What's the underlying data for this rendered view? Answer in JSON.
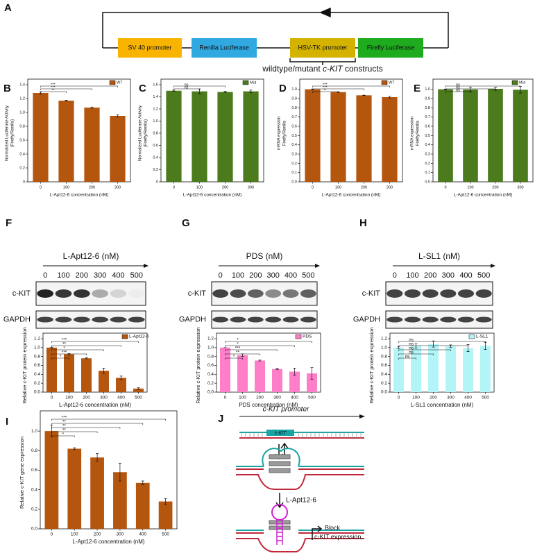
{
  "construct": {
    "panel": "A",
    "boxes": [
      "SV 40 promoter",
      "Renilla Luciferase",
      "HSV-TK promoter",
      "Firefly Luciferase"
    ],
    "caption": [
      "wildtype/mutant ",
      "c-KIT",
      " constructs"
    ]
  },
  "blots": [
    {
      "title": "L-Apt12-6 (nM)",
      "lanes": [
        "0",
        "100",
        "200",
        "300",
        "400",
        "500"
      ],
      "rows": [
        "c-KIT",
        "GAPDH"
      ]
    },
    {
      "title": "PDS (nM)",
      "lanes": [
        "0",
        "100",
        "200",
        "300",
        "400",
        "500"
      ],
      "rows": [
        "c-KIT",
        "GAPDH"
      ]
    },
    {
      "title": "L-SL1 (nM)",
      "lanes": [
        "0",
        "100",
        "200",
        "300",
        "400",
        "500"
      ],
      "rows": [
        "c-KIT",
        "GAPDH"
      ]
    }
  ],
  "mechanism": {
    "panel": "J",
    "promoter": "c-KIT promoter",
    "box": "c-KIT",
    "drug": "L-Apt12-6",
    "block": [
      "Block",
      "c-KIT expression"
    ]
  },
  "chart_data": [
    {
      "type": "bar",
      "panel": "B",
      "categories": [
        "0",
        "100",
        "200",
        "300"
      ],
      "series": [
        {
          "name": "WT",
          "color": "#b5560f",
          "values": [
            1.28,
            1.17,
            1.07,
            0.95
          ],
          "errors": [
            0.015,
            0.005,
            0.008,
            0.015
          ]
        }
      ],
      "xlabel": "L-Apt12-6 concentration (nM)",
      "ylabel": [
        "Normalized Luciferase Activity",
        "(Firefly/Renilla)"
      ],
      "ylim": [
        0,
        1.4
      ],
      "yticks": [
        0,
        0.2,
        0.4,
        0.6,
        0.8,
        {
          "value": 1,
          "label": "1.0"
        },
        1.2,
        1.4
      ],
      "significance": [
        "**",
        "***",
        "***"
      ]
    },
    {
      "type": "bar",
      "panel": "C",
      "categories": [
        "0",
        "100",
        "200",
        "300"
      ],
      "series": [
        {
          "name": "Mut",
          "color": "#4b7b1c",
          "values": [
            1.5,
            1.49,
            1.48,
            1.49
          ],
          "errors": [
            0.01,
            0.04,
            0.01,
            0.02
          ]
        }
      ],
      "xlabel": "L-Apt12-6 concentration (nM)",
      "ylabel": [
        "Normalized Luciferase Activity",
        "(Firefly/Renilla)"
      ],
      "ylim": [
        0,
        1.6
      ],
      "yticks": [
        0,
        0.2,
        0.4,
        0.6,
        0.8,
        {
          "value": 1,
          "label": "1.0"
        },
        1.2,
        1.4,
        1.6
      ],
      "significance": [
        "ns",
        "ns"
      ]
    },
    {
      "type": "bar",
      "panel": "D",
      "categories": [
        "0",
        "100",
        "200",
        "300"
      ],
      "series": [
        {
          "name": "WT",
          "color": "#b5560f",
          "values": [
            1.0,
            0.97,
            0.935,
            0.915
          ],
          "errors": [
            0.003,
            0.002,
            0.002,
            0.01
          ]
        }
      ],
      "xlabel": "L-Apt12-6 concentration (nM)",
      "ylabel": [
        "mRNA expression",
        "Firefly/Renilla"
      ],
      "ylim": [
        0,
        1.05
      ],
      "yticks": [
        {
          "value": 0,
          "label": "0.0"
        },
        0.1,
        0.2,
        0.3,
        0.4,
        0.5,
        0.6,
        0.7,
        0.8,
        0.9,
        {
          "value": 1,
          "label": "1.0"
        }
      ],
      "significance": [
        "**",
        "***",
        "***"
      ]
    },
    {
      "type": "bar",
      "panel": "E",
      "categories": [
        "0",
        "100",
        "200",
        "300"
      ],
      "series": [
        {
          "name": "Mut",
          "color": "#4b7b1c",
          "values": [
            1.0,
            0.998,
            1.005,
            0.995
          ],
          "errors": [
            0.003,
            0.025,
            0.015,
            0.035
          ]
        }
      ],
      "xlabel": "L-Apt12-6 concentration (nM)",
      "ylabel": [
        "mRNA expression",
        "Firefly/Renilla"
      ],
      "ylim": [
        0,
        1.05
      ],
      "yticks": [
        {
          "value": 0,
          "label": "0.0"
        },
        0.1,
        0.2,
        0.3,
        0.4,
        0.5,
        0.6,
        0.7,
        0.8,
        0.9,
        {
          "value": 1,
          "label": "1.0"
        }
      ],
      "significance": [
        "ns",
        "ns",
        "ns"
      ]
    },
    {
      "type": "bar",
      "panel": "F",
      "categories": [
        "0",
        "100",
        "200",
        "300",
        "400",
        "500"
      ],
      "series": [
        {
          "name": "L-Apt12-6",
          "color": "#b5560f",
          "values": [
            1.0,
            0.85,
            0.76,
            0.48,
            0.32,
            0.08
          ],
          "errors": [
            0.01,
            0.02,
            0.01,
            0.06,
            0.04,
            0.02
          ]
        }
      ],
      "xlabel": "L-Apt12-6 concentration (nM)",
      "ylabel": [
        "Relative c-KIT protein expression"
      ],
      "ylim": [
        0,
        1.2
      ],
      "yticks": [
        {
          "value": 0,
          "label": "0.0"
        },
        0.2,
        0.4,
        0.6,
        0.8,
        {
          "value": 1,
          "label": "1.0"
        },
        1.2
      ],
      "significance": [
        "*",
        "***",
        "*",
        "**",
        "***"
      ]
    },
    {
      "type": "bar",
      "panel": "G",
      "categories": [
        "0",
        "100",
        "200",
        "300",
        "400",
        "500"
      ],
      "series": [
        {
          "name": "PDS",
          "color": "#ff7ec8",
          "values": [
            1.0,
            0.83,
            0.71,
            0.52,
            0.46,
            0.42
          ],
          "errors": [
            0,
            0.03,
            0.01,
            0.01,
            0.08,
            0.13
          ]
        }
      ],
      "xlabel": "PDS concentration (nM)",
      "ylabel": [
        "Relative c-KIT protein expression"
      ],
      "ylim": [
        0,
        1.2
      ],
      "yticks": [
        {
          "value": 0,
          "label": "0.0"
        },
        0.2,
        0.4,
        0.6,
        0.8,
        {
          "value": 1,
          "label": "1.0"
        },
        1.2
      ],
      "significance": [
        "*",
        "**",
        "***",
        "*",
        "*"
      ]
    },
    {
      "type": "bar",
      "panel": "H",
      "categories": [
        "0",
        "100",
        "200",
        "300",
        "400",
        "500"
      ],
      "series": [
        {
          "name": "L-SL1",
          "color": "#b3f5f7",
          "values": [
            1.0,
            1.04,
            1.08,
            1.03,
            0.99,
            1.04
          ],
          "errors": [
            0.02,
            0.05,
            0.07,
            0.03,
            0.08,
            0.08
          ]
        }
      ],
      "xlabel": "L-SL1 concentration (nM)",
      "ylabel": [
        "Relative c-KIT protein expression"
      ],
      "ylim": [
        0,
        1.2
      ],
      "yticks": [
        {
          "value": 0,
          "label": "0.0"
        },
        0.2,
        0.4,
        0.6,
        0.8,
        {
          "value": 1,
          "label": "1.0"
        },
        1.2
      ],
      "significance": [
        "ns",
        "ns",
        "ns",
        "ns",
        "ns"
      ]
    },
    {
      "type": "bar",
      "panel": "I",
      "categories": [
        "0",
        "100",
        "200",
        "300",
        "400",
        "500"
      ],
      "series": [
        {
          "color": "#b5560f",
          "values": [
            1.0,
            0.82,
            0.73,
            0.58,
            0.47,
            0.28
          ],
          "errors": [
            0.06,
            0.01,
            0.04,
            0.09,
            0.02,
            0.03
          ]
        }
      ],
      "xlabel": "L-Apt12-6 concentration (nM)",
      "ylabel": [
        "Relative c-KIT gene expression"
      ],
      "ylim": [
        0,
        1.15
      ],
      "yticks": [
        {
          "value": 0,
          "label": "0.0"
        },
        0.2,
        0.4,
        0.6,
        0.8,
        {
          "value": 1,
          "label": "1.0"
        }
      ],
      "significance": [
        "*",
        "**",
        "**",
        "**",
        "***"
      ]
    }
  ]
}
